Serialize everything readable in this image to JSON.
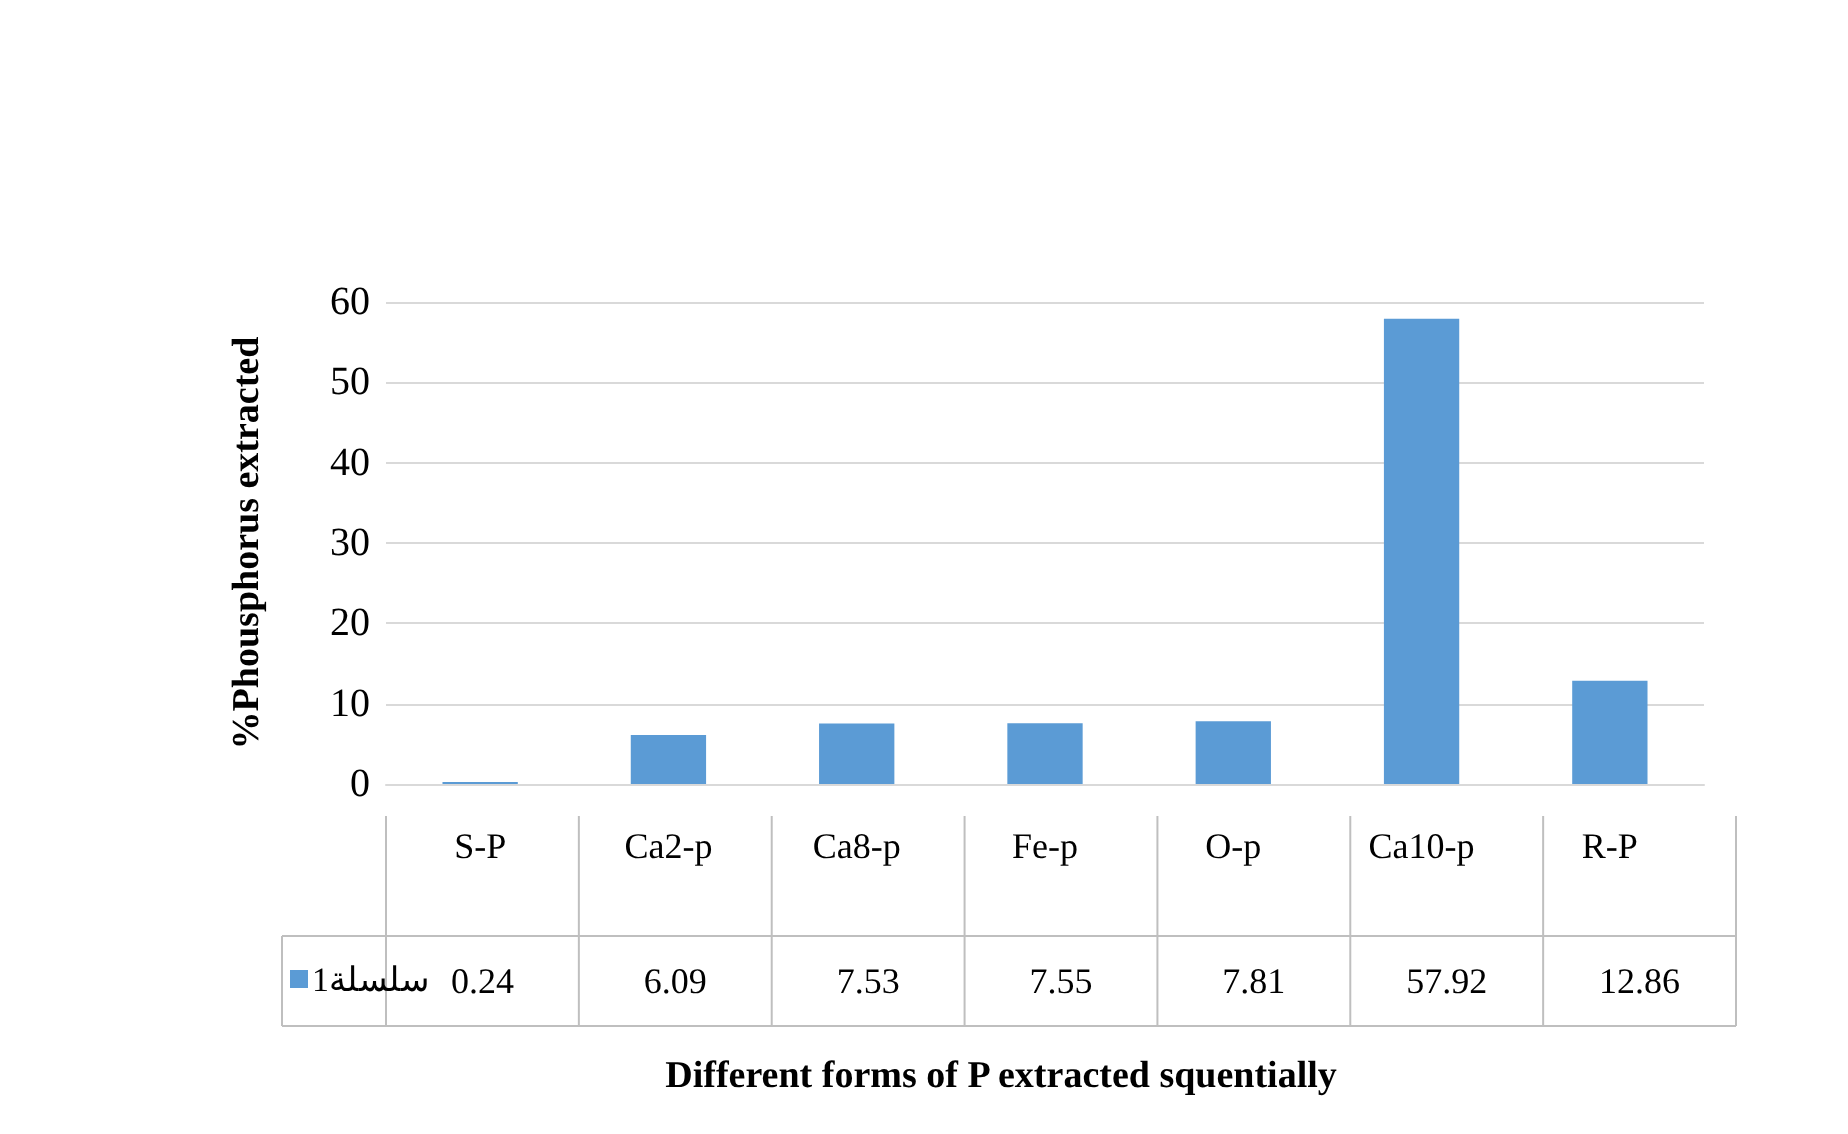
{
  "chart_data": {
    "type": "bar",
    "xlabel": "Different forms of P extracted squentially",
    "ylabel": "%Phousphorus extracted",
    "categories": [
      "S-P",
      "Ca2-p",
      "Ca8-p",
      "Fe-p",
      "O-p",
      "Ca10-p",
      "R-P"
    ],
    "series": [
      {
        "name": "سلسلة1",
        "color": "#5b9bd5",
        "values": [
          0.24,
          6.09,
          7.53,
          7.55,
          7.81,
          57.92,
          12.86
        ]
      }
    ],
    "ylim": [
      0,
      60
    ],
    "yticks": [
      0,
      10,
      20,
      30,
      40,
      50,
      60
    ],
    "grid": "y",
    "data_labels": true,
    "legend": "bottom"
  }
}
